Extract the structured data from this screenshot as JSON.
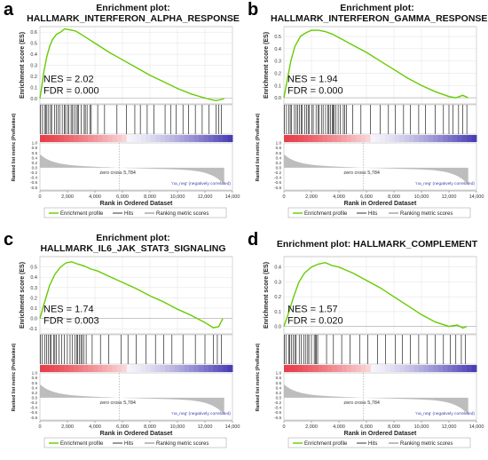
{
  "shared": {
    "ylabel_es": "Enrichment score (ES)",
    "ylabel_rank": "Ranked list metric (PreRanked)",
    "xlabel": "Rank in Ordered Dataset",
    "pos_label": "'na_pos' (positively correlated)",
    "neg_label": "'na_neg' (negatively correlated)",
    "zero_cross": "zero cross 5,784",
    "legend": [
      "Enrichment profile",
      "Hits",
      "Ranking metric scores"
    ],
    "x_ticks": [
      "0",
      "2,000",
      "4,000",
      "6,000",
      "8,000",
      "10,000",
      "12,000",
      "14,000"
    ],
    "rank_ticks": [
      "1.0",
      "0.8",
      "0.6",
      "0.4",
      "0.2",
      "0.0",
      "-0.2",
      "-0.4",
      "-0.6",
      "-0.8"
    ],
    "colors": {
      "profile": "#66cc00",
      "hits": "#000000",
      "metric": "#bdbdbd",
      "pos_band": "#e8404a",
      "neg_band": "#4b3fb5"
    }
  },
  "panels": [
    {
      "letter": "a",
      "title_line1": "Enrichment plot:",
      "title_line2": "HALLMARK_INTERFERON_ALPHA_RESPONSE",
      "nes": "NES = 2.02",
      "fdr": "FDR = 0.000"
    },
    {
      "letter": "b",
      "title_line1": "Enrichment plot:",
      "title_line2": "HALLMARK_INTERFERON_GAMMA_RESPONSE",
      "nes": "NES = 1.94",
      "fdr": "FDR = 0.000"
    },
    {
      "letter": "c",
      "title_line1": "Enrichment plot:",
      "title_line2": "HALLMARK_IL6_JAK_STAT3_SIGNALING",
      "nes": "NES = 1.74",
      "fdr": "FDR = 0.003"
    },
    {
      "letter": "d",
      "title_line1": "Enrichment plot: HALLMARK_COMPLEMENT",
      "title_line2": "",
      "nes": "NES = 1.57",
      "fdr": "FDR = 0.020"
    }
  ],
  "chart_data": [
    {
      "type": "line",
      "xlabel": "Rank in Ordered Dataset",
      "ylabel": "Enrichment score (ES)",
      "xlim": [
        0,
        14000
      ],
      "ylim": [
        -0.05,
        0.65
      ],
      "y_ticks": [
        0.6,
        0.5,
        0.4,
        0.3,
        0.2,
        0.1,
        0.0
      ],
      "series": [
        {
          "name": "Enrichment profile",
          "x": [
            0,
            150,
            300,
            500,
            700,
            900,
            1200,
            1500,
            1800,
            2200,
            2600,
            3000,
            3500,
            4000,
            4500,
            5000,
            6000,
            7000,
            8000,
            9000,
            10000,
            11000,
            11800,
            12400,
            12800,
            13200,
            13400
          ],
          "y": [
            0,
            0.12,
            0.25,
            0.38,
            0.47,
            0.53,
            0.58,
            0.6,
            0.63,
            0.62,
            0.61,
            0.58,
            0.54,
            0.5,
            0.46,
            0.42,
            0.35,
            0.28,
            0.21,
            0.15,
            0.09,
            0.04,
            0.01,
            -0.01,
            -0.02,
            -0.01,
            0.0
          ]
        }
      ],
      "hits": {
        "dense": [
          [
            0,
            3800
          ]
        ],
        "sparse": [
          4200,
          4700,
          5600,
          6300,
          6900,
          7300,
          7800,
          8300,
          9100,
          9500,
          9900,
          10400,
          10800,
          11300,
          11800,
          12300,
          12800,
          13000,
          13200
        ]
      }
    },
    {
      "type": "line",
      "xlabel": "Rank in Ordered Dataset",
      "ylabel": "Enrichment score (ES)",
      "xlim": [
        0,
        14000
      ],
      "ylim": [
        -0.05,
        0.58
      ],
      "y_ticks": [
        0.5,
        0.4,
        0.3,
        0.2,
        0.1,
        0.0
      ],
      "series": [
        {
          "name": "Enrichment profile",
          "x": [
            0,
            200,
            500,
            800,
            1200,
            1600,
            2000,
            2500,
            3000,
            3500,
            4000,
            5000,
            6000,
            7000,
            8000,
            9000,
            10000,
            11000,
            12000,
            12500,
            13000,
            13400
          ],
          "y": [
            0,
            0.12,
            0.3,
            0.42,
            0.5,
            0.53,
            0.55,
            0.55,
            0.54,
            0.52,
            0.49,
            0.43,
            0.37,
            0.3,
            0.23,
            0.16,
            0.1,
            0.05,
            0.01,
            0.0,
            0.02,
            0.0
          ]
        }
      ],
      "hits": {
        "dense": [
          [
            0,
            4600
          ]
        ],
        "sparse": [
          5000,
          5600,
          6300,
          7000,
          7600,
          8100,
          8700,
          9200,
          9800,
          10300,
          11000,
          11600,
          12000,
          12300,
          12700,
          13000,
          13300
        ]
      }
    },
    {
      "type": "line",
      "xlabel": "Rank in Ordered Dataset",
      "ylabel": "Enrichment score (ES)",
      "xlim": [
        0,
        14000
      ],
      "ylim": [
        -0.15,
        0.6
      ],
      "y_ticks": [
        0.5,
        0.4,
        0.3,
        0.2,
        0.1,
        0.0,
        -0.1
      ],
      "series": [
        {
          "name": "Enrichment profile",
          "x": [
            0,
            300,
            700,
            1100,
            1500,
            1900,
            2300,
            2700,
            3200,
            3700,
            4200,
            5000,
            6000,
            7000,
            8000,
            9000,
            10000,
            11000,
            12000,
            12600,
            13000,
            13300
          ],
          "y": [
            0,
            0.14,
            0.32,
            0.43,
            0.5,
            0.54,
            0.55,
            0.53,
            0.51,
            0.48,
            0.46,
            0.41,
            0.35,
            0.29,
            0.22,
            0.16,
            0.09,
            0.03,
            -0.04,
            -0.09,
            -0.08,
            0.0
          ]
        }
      ],
      "hits": {
        "dense": [
          [
            0,
            3400
          ]
        ],
        "sparse": [
          3800,
          4400,
          5000,
          5900,
          6400,
          7000,
          7700,
          8400,
          9000,
          9600,
          10400,
          11300,
          12000,
          12600,
          12900,
          13200
        ]
      }
    },
    {
      "type": "line",
      "xlabel": "Rank in Ordered Dataset",
      "ylabel": "Enrichment score (ES)",
      "xlim": [
        0,
        14000
      ],
      "ylim": [
        -0.05,
        0.47
      ],
      "y_ticks": [
        0.4,
        0.3,
        0.2,
        0.1,
        0.0
      ],
      "series": [
        {
          "name": "Enrichment profile",
          "x": [
            0,
            300,
            700,
            1100,
            1500,
            2000,
            2500,
            3000,
            3500,
            4000,
            4500,
            5000,
            6000,
            7000,
            8000,
            9000,
            10000,
            11000,
            12000,
            12600,
            13000,
            13300
          ],
          "y": [
            0,
            0.08,
            0.2,
            0.3,
            0.36,
            0.4,
            0.42,
            0.43,
            0.41,
            0.4,
            0.38,
            0.36,
            0.31,
            0.26,
            0.2,
            0.14,
            0.08,
            0.03,
            0.0,
            0.01,
            -0.01,
            0.0
          ]
        }
      ],
      "hits": {
        "dense": [
          [
            0,
            2600
          ]
        ],
        "sparse": [
          3100,
          3600,
          4200,
          4800,
          5500,
          6100,
          6800,
          7400,
          8100,
          8600,
          9200,
          9800,
          10400,
          11000,
          11600,
          12100,
          12500,
          12900,
          13200
        ]
      }
    }
  ]
}
